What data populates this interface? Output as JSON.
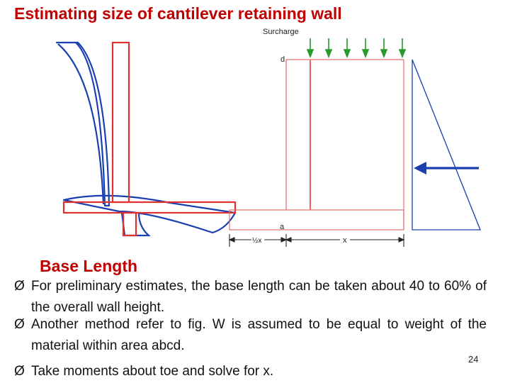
{
  "slide": {
    "title": "Estimating size of cantilever retaining wall",
    "page_number": "24"
  },
  "diagram": {
    "surcharge_label": "Surcharge",
    "point_d_label": "d",
    "point_a_label": "a",
    "half_x_label": "½x",
    "x_label": "x",
    "colors": {
      "wall_outline": "#e03030",
      "deflection": "#1a3fb0",
      "surcharge_arrows": "#2a9a2a",
      "force_arrow": "#1a3fb0",
      "dimension": "#222222"
    }
  },
  "content": {
    "heading": "Base Length",
    "bullet_glyph": "Ø",
    "bullets": [
      "For preliminary estimates, the base length can be taken about 40 to 60% of the overall wall height.",
      "Another method refer to fig. W is assumed to be equal to weight of the material within area abcd.",
      "Take moments about toe and solve for x."
    ]
  }
}
